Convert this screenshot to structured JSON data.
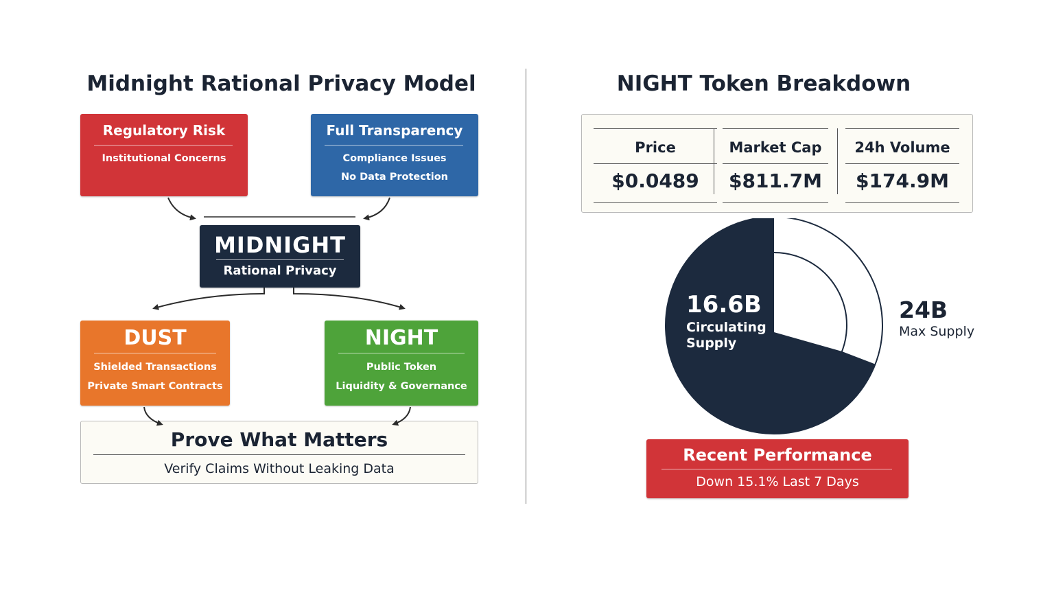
{
  "left": {
    "title": "Midnight Rational Privacy Model",
    "regulatory": {
      "heading": "Regulatory Risk",
      "lines": [
        "Institutional Concerns"
      ]
    },
    "transparency": {
      "heading": "Full Transparency",
      "lines": [
        "Compliance Issues",
        "No Data Protection"
      ]
    },
    "midnight": {
      "heading": "MIDNIGHT",
      "subtitle": "Rational Privacy"
    },
    "dust": {
      "heading": "DUST",
      "lines": [
        "Shielded Transactions",
        "Private Smart Contracts"
      ]
    },
    "night": {
      "heading": "NIGHT",
      "lines": [
        "Public Token",
        "Liquidity & Governance"
      ]
    },
    "prove": {
      "heading": "Prove What Matters",
      "subtitle": "Verify Claims Without Leaking Data"
    }
  },
  "right": {
    "title": "NIGHT Token Breakdown",
    "stats": [
      {
        "label": "Price",
        "value": "$0.0489"
      },
      {
        "label": "Market Cap",
        "value": "$811.7M"
      },
      {
        "label": "24h Volume",
        "value": "$174.9M"
      }
    ],
    "supply": {
      "circulating_value": "16.6B",
      "circulating_label_1": "Circulating",
      "circulating_label_2": "Supply",
      "max_value": "24B",
      "max_label": "Max Supply",
      "circulating_num": 16.6,
      "max_num": 24
    },
    "performance": {
      "heading": "Recent Performance",
      "detail": "Down 15.1% Last 7 Days"
    }
  },
  "colors": {
    "red": "#d13438",
    "blue": "#2e67a7",
    "navy": "#1c2a3e",
    "orange": "#e8762b",
    "green": "#4ea33a",
    "cream": "#fcfbf5"
  }
}
